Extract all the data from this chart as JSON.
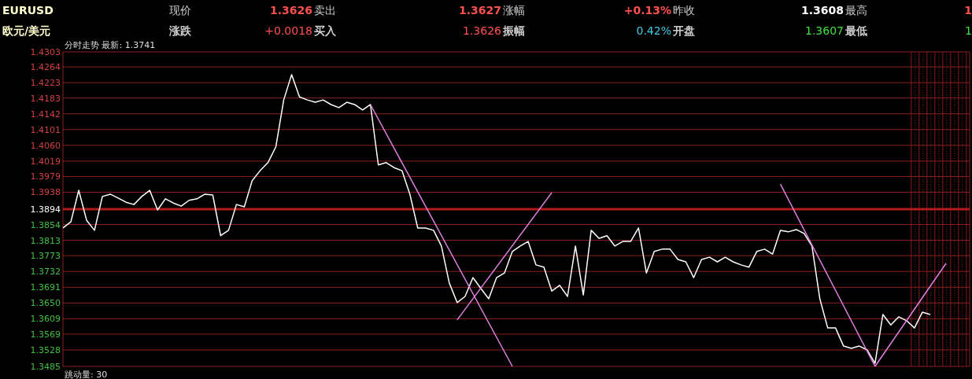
{
  "chart_data": {
    "type": "line",
    "annotations": [
      "EURUSD",
      "现价",
      "1.3626",
      "卖出",
      "1.3627",
      "涨幅",
      "+0.13%",
      "昨收",
      "1.3608",
      "最高",
      "1",
      "欧元/美元",
      "涨跌",
      "+0.0018",
      "买入",
      "1.3626",
      "振幅",
      "0.42%",
      "开盘",
      "1.3607",
      "最低",
      "1",
      "分时走势  最新: 1.3741",
      "跳动量: 30"
    ],
    "categories": [
      null,
      null,
      null,
      null,
      null,
      null,
      null,
      null,
      null,
      null,
      null,
      null,
      null,
      null,
      null,
      null,
      null,
      null,
      null,
      null,
      null,
      null,
      null,
      null,
      null,
      null,
      null,
      null,
      null,
      null,
      null,
      null,
      null,
      null,
      null,
      null,
      null,
      null,
      null,
      null,
      null,
      null,
      null,
      null,
      null,
      null,
      null,
      null,
      null,
      null,
      null,
      null,
      null,
      null,
      null,
      null,
      null,
      null,
      null,
      null,
      null,
      null,
      null,
      null,
      null,
      null,
      null,
      null,
      null,
      null,
      null,
      null,
      null,
      null,
      null,
      null,
      null,
      null,
      null,
      null,
      null,
      null,
      null,
      null,
      null,
      null,
      null,
      null,
      null,
      null,
      null,
      null,
      null,
      null,
      null,
      null,
      null,
      null,
      null,
      null,
      null,
      null,
      null,
      null,
      null,
      null,
      null,
      null,
      null,
      null,
      null,
      null,
      null,
      null,
      null,
      null
    ],
    "series": [
      {
        "color": "#ffffff",
        "values": [
          1.3845,
          1.3861,
          1.3943,
          1.3865,
          1.3839,
          1.3927,
          1.3933,
          1.3923,
          1.3912,
          1.3906,
          1.3927,
          1.3943,
          1.3892,
          1.3921,
          1.391,
          1.3902,
          1.3917,
          1.3921,
          1.3933,
          1.3931,
          1.3825,
          1.3839,
          1.3906,
          1.39,
          1.3968,
          1.3994,
          1.4015,
          1.4056,
          1.4178,
          1.4244,
          1.4186,
          1.4178,
          1.4172,
          1.4178,
          1.4166,
          1.4158,
          1.4172,
          1.4166,
          1.4152,
          1.4166,
          1.4009,
          1.4015,
          1.4002,
          1.3994,
          1.3933,
          1.3845,
          1.3845,
          1.3839,
          1.3798,
          1.3702,
          1.3651,
          1.3667,
          1.3716,
          1.3688,
          1.3661,
          1.3716,
          1.3728,
          1.3784,
          1.3798,
          1.381,
          1.3749,
          1.3743,
          1.3681,
          1.3696,
          1.3667,
          1.3798,
          1.3671,
          1.3839,
          1.3818,
          1.3825,
          1.3798,
          1.381,
          1.381,
          1.3845,
          1.3728,
          1.3784,
          1.379,
          1.379,
          1.3763,
          1.3757,
          1.3716,
          1.3763,
          1.3769,
          1.3757,
          1.3769,
          1.3757,
          1.3749,
          1.3743,
          1.3784,
          1.379,
          1.3777,
          1.3839,
          1.3835,
          1.3841,
          1.3831,
          1.3798,
          1.3661,
          1.3585,
          1.3585,
          1.3538,
          1.3532,
          1.3538,
          1.3528,
          1.3493,
          1.362,
          1.3593,
          1.3614,
          1.3604,
          1.3585,
          1.3626,
          1.362,
          null,
          null,
          null,
          null,
          null
        ]
      },
      {
        "type": "line",
        "color": "#e080e0",
        "values": [
          null,
          null,
          null,
          null,
          null,
          null,
          null,
          null,
          null,
          null,
          null,
          null,
          null,
          null,
          null,
          null,
          null,
          null,
          null,
          null,
          null,
          null,
          null,
          null,
          null,
          null,
          null,
          null,
          null,
          null,
          null,
          null,
          null,
          null,
          null,
          null,
          null,
          null,
          null,
          1.4166,
          null,
          null,
          null,
          null,
          null,
          null,
          null,
          null,
          null,
          null,
          null,
          null,
          null,
          null,
          null,
          null,
          null,
          1.3485,
          null,
          null,
          null,
          null,
          null,
          null,
          null,
          null,
          null,
          null,
          null,
          null,
          null,
          null,
          null,
          null,
          null,
          null,
          null,
          null,
          null,
          null,
          null,
          null,
          null,
          null,
          null,
          null,
          null,
          null,
          null,
          null,
          null,
          null,
          null,
          null,
          null,
          null,
          null,
          null,
          null,
          null,
          null,
          null,
          null,
          null,
          null,
          null,
          null,
          null,
          null,
          null,
          null,
          null,
          null,
          null,
          null,
          null
        ]
      },
      {
        "type": "line",
        "color": "#e080e0",
        "values": [
          null,
          null,
          null,
          null,
          null,
          null,
          null,
          null,
          null,
          null,
          null,
          null,
          null,
          null,
          null,
          null,
          null,
          null,
          null,
          null,
          null,
          null,
          null,
          null,
          null,
          null,
          null,
          null,
          null,
          null,
          null,
          null,
          null,
          null,
          null,
          null,
          null,
          null,
          null,
          null,
          null,
          null,
          null,
          null,
          null,
          null,
          null,
          null,
          null,
          null,
          1.3606,
          null,
          null,
          null,
          null,
          null,
          null,
          null,
          null,
          null,
          null,
          null,
          1.3937,
          null,
          null,
          null,
          null,
          null,
          null,
          null,
          null,
          null,
          null,
          null,
          null,
          null,
          null,
          null,
          null,
          null,
          null,
          null,
          null,
          null,
          null,
          null,
          null,
          null,
          null,
          null,
          null,
          null,
          null,
          null,
          null,
          null,
          null,
          null,
          null,
          null,
          null,
          null,
          null,
          null,
          null,
          null,
          null,
          null,
          null,
          null,
          null,
          null,
          null,
          null,
          null,
          null
        ]
      },
      {
        "type": "line",
        "color": "#e080e0",
        "values": [
          null,
          null,
          null,
          null,
          null,
          null,
          null,
          null,
          null,
          null,
          null,
          null,
          null,
          null,
          null,
          null,
          null,
          null,
          null,
          null,
          null,
          null,
          null,
          null,
          null,
          null,
          null,
          null,
          null,
          null,
          null,
          null,
          null,
          null,
          null,
          null,
          null,
          null,
          null,
          null,
          null,
          null,
          null,
          null,
          null,
          null,
          null,
          null,
          null,
          null,
          null,
          null,
          null,
          null,
          null,
          null,
          null,
          null,
          null,
          null,
          null,
          null,
          null,
          null,
          null,
          null,
          null,
          null,
          null,
          null,
          null,
          null,
          null,
          null,
          null,
          null,
          null,
          null,
          null,
          null,
          null,
          null,
          null,
          null,
          null,
          null,
          null,
          null,
          null,
          null,
          null,
          1.3959,
          null,
          null,
          null,
          null,
          null,
          null,
          null,
          null,
          null,
          null,
          null,
          1.3485,
          null,
          null,
          null,
          null,
          null,
          null,
          null,
          null,
          null,
          null,
          null,
          null
        ]
      },
      {
        "type": "line",
        "color": "#e080e0",
        "values": [
          null,
          null,
          null,
          null,
          null,
          null,
          null,
          null,
          null,
          null,
          null,
          null,
          null,
          null,
          null,
          null,
          null,
          null,
          null,
          null,
          null,
          null,
          null,
          null,
          null,
          null,
          null,
          null,
          null,
          null,
          null,
          null,
          null,
          null,
          null,
          null,
          null,
          null,
          null,
          null,
          null,
          null,
          null,
          null,
          null,
          null,
          null,
          null,
          null,
          null,
          null,
          null,
          null,
          null,
          null,
          null,
          null,
          null,
          null,
          null,
          null,
          null,
          null,
          null,
          null,
          null,
          null,
          null,
          null,
          null,
          null,
          null,
          null,
          null,
          null,
          null,
          null,
          null,
          null,
          null,
          null,
          null,
          null,
          null,
          null,
          null,
          null,
          null,
          null,
          null,
          null,
          null,
          null,
          null,
          null,
          null,
          null,
          null,
          null,
          null,
          null,
          null,
          null,
          1.3485,
          null,
          null,
          null,
          null,
          null,
          null,
          null,
          null,
          1.3753,
          null,
          null,
          null
        ]
      }
    ],
    "ylim": [
      1.3485,
      1.4303
    ],
    "yticks": [
      1.4303,
      1.4264,
      1.4223,
      1.4183,
      1.4142,
      1.4101,
      {
        "value": 1.406,
        "label": "1.4060"
      },
      1.4019,
      1.3979,
      1.3938,
      1.3894,
      1.3854,
      1.3813,
      1.3773,
      1.3732,
      1.3691,
      {
        "value": 1.365,
        "label": "1.3650"
      },
      1.3609,
      1.3569,
      1.3528,
      1.3485
    ],
    "ref_lines": [
      {
        "axis": "y",
        "value": 1.3894,
        "color": "#b01c1c"
      }
    ],
    "grid": "y",
    "marker": "none",
    "line_style": "solid"
  }
}
